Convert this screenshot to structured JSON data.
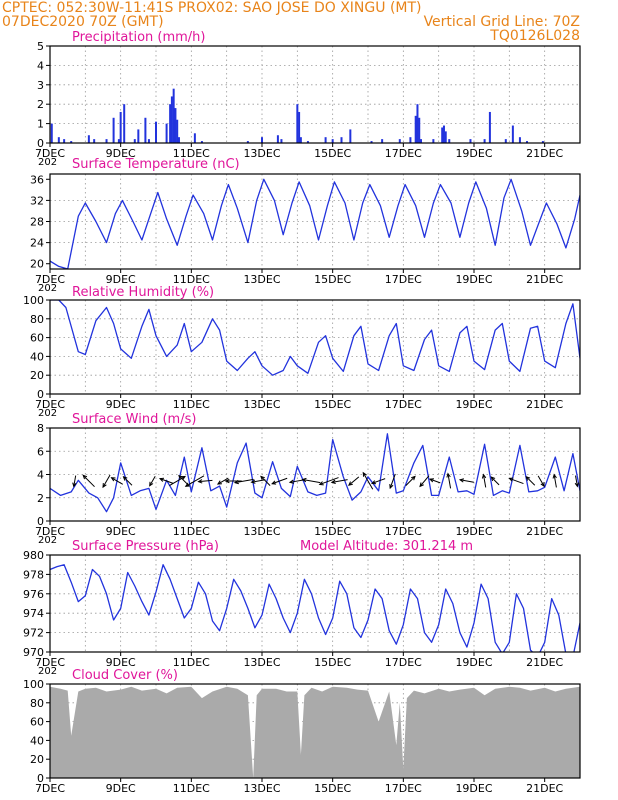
{
  "header": {
    "line1": "CPTEC:   052:30W-11:41S   PROX02: SAO JOSE DO XINGU (MT)",
    "line2_left": "07DEC2020 70Z (GMT)",
    "line2_right": "Vertical Grid Line: 70Z",
    "line3_right": "TQ0126L028"
  },
  "colors": {
    "header": "#e8841a",
    "title": "#e0169a",
    "series": "#2233dd",
    "arrow": "#000000",
    "cloud": "#aaaaaa",
    "grid": "#999999"
  },
  "x_axis": {
    "tick_labels": [
      "7DEC",
      "9DEC",
      "11DEC",
      "13DEC",
      "15DEC",
      "17DEC",
      "19DEC",
      "21DEC"
    ],
    "cut_label": "202",
    "range_days": [
      7,
      22
    ]
  },
  "panels": [
    {
      "id": "precip",
      "title": "Precipitation (mm/h)",
      "extra": "",
      "type": "bar",
      "ylim": [
        0,
        5
      ],
      "yticks": [
        "0",
        "1",
        "2",
        "3",
        "4",
        "5"
      ]
    },
    {
      "id": "temp",
      "title": "Surface Temperature (nC)",
      "extra": "",
      "type": "line",
      "ylim": [
        19,
        37
      ],
      "yticks": [
        "20",
        "24",
        "28",
        "32",
        "36"
      ]
    },
    {
      "id": "rh",
      "title": "Relative Humidity (%)",
      "extra": "",
      "type": "line",
      "ylim": [
        0,
        100
      ],
      "yticks": [
        "0",
        "20",
        "40",
        "60",
        "80",
        "100"
      ]
    },
    {
      "id": "wind",
      "title": "Surface Wind (m/s)",
      "extra": "",
      "type": "line",
      "ylim": [
        0,
        8
      ],
      "yticks": [
        "0",
        "2",
        "4",
        "6",
        "8"
      ]
    },
    {
      "id": "pres",
      "title": "Surface Pressure (hPa)",
      "extra": "Model Altitude: 301.214 m",
      "type": "line",
      "ylim": [
        970,
        980
      ],
      "yticks": [
        "970",
        "972",
        "974",
        "976",
        "978",
        "980"
      ]
    },
    {
      "id": "cloud",
      "title": "Cloud Cover (%)",
      "extra": "",
      "type": "area",
      "ylim": [
        0,
        100
      ],
      "yticks": [
        "0",
        "20",
        "40",
        "60",
        "80",
        "100"
      ]
    }
  ],
  "chart_data": [
    {
      "type": "bar",
      "title": "Precipitation (mm/h)",
      "ylim": [
        0,
        5
      ],
      "x": [
        7.05,
        7.25,
        7.4,
        7.6,
        8.1,
        8.25,
        8.6,
        8.8,
        8.95,
        9.0,
        9.1,
        9.4,
        9.5,
        9.7,
        9.8,
        10.0,
        10.3,
        10.4,
        10.45,
        10.5,
        10.55,
        10.6,
        10.65,
        11.1,
        11.3,
        12.6,
        13.0,
        13.45,
        13.55,
        14.0,
        14.05,
        14.1,
        14.3,
        14.8,
        15.0,
        15.25,
        15.5,
        16.1,
        16.4,
        16.9,
        17.2,
        17.35,
        17.4,
        17.45,
        17.5,
        17.85,
        18.1,
        18.15,
        18.2,
        18.3,
        18.9,
        19.3,
        19.45,
        19.9,
        20.1,
        20.3,
        20.5,
        20.95
      ],
      "values": [
        1.0,
        0.3,
        0.2,
        0.1,
        0.4,
        0.2,
        0.2,
        1.3,
        0.2,
        1.6,
        2.0,
        0.2,
        0.7,
        1.3,
        0.2,
        1.1,
        1.0,
        2.0,
        2.4,
        2.8,
        1.8,
        1.2,
        0.3,
        0.5,
        0.1,
        0.1,
        0.3,
        0.4,
        0.2,
        2.0,
        1.6,
        0.3,
        0.1,
        0.3,
        0.2,
        0.3,
        0.7,
        0.1,
        0.2,
        0.2,
        0.3,
        1.4,
        2.0,
        1.3,
        0.2,
        0.2,
        0.8,
        0.9,
        0.6,
        0.2,
        0.2,
        0.2,
        1.6,
        0.2,
        0.9,
        0.3,
        0.1,
        0.1
      ]
    },
    {
      "type": "line",
      "title": "Surface Temperature (nC)",
      "ylim": [
        19,
        37
      ],
      "x": [
        7.0,
        7.25,
        7.5,
        7.8,
        8.0,
        8.3,
        8.6,
        8.85,
        9.05,
        9.35,
        9.6,
        9.85,
        10.05,
        10.3,
        10.6,
        10.85,
        11.05,
        11.35,
        11.6,
        11.85,
        12.05,
        12.3,
        12.6,
        12.85,
        13.05,
        13.35,
        13.6,
        13.85,
        14.05,
        14.35,
        14.6,
        14.85,
        15.05,
        15.35,
        15.6,
        15.85,
        16.05,
        16.35,
        16.6,
        16.85,
        17.05,
        17.35,
        17.6,
        17.85,
        18.05,
        18.35,
        18.6,
        18.85,
        19.05,
        19.35,
        19.6,
        19.85,
        20.05,
        20.35,
        20.6,
        20.85,
        21.05,
        21.35,
        21.6,
        21.85,
        22.0
      ],
      "values": [
        20.5,
        19.5,
        19.0,
        29.0,
        31.5,
        28.0,
        24.0,
        29.5,
        32.0,
        28.0,
        24.5,
        29.5,
        33.5,
        28.5,
        23.5,
        29.0,
        33.0,
        29.5,
        24.5,
        31.0,
        35.0,
        30.5,
        24.0,
        32.0,
        36.0,
        32.0,
        25.5,
        31.5,
        35.5,
        31.0,
        24.5,
        31.0,
        35.5,
        31.5,
        24.5,
        31.5,
        35.0,
        31.0,
        25.0,
        31.0,
        35.0,
        31.0,
        25.0,
        31.5,
        35.0,
        31.5,
        25.0,
        31.5,
        35.5,
        30.5,
        23.5,
        32.5,
        36.0,
        30.0,
        23.5,
        28.0,
        31.5,
        27.5,
        23.0,
        28.5,
        33.0
      ]
    },
    {
      "type": "line",
      "title": "Relative Humidity (%)",
      "ylim": [
        0,
        100
      ],
      "x": [
        7.0,
        7.25,
        7.45,
        7.8,
        8.0,
        8.3,
        8.6,
        8.8,
        9.0,
        9.3,
        9.6,
        9.8,
        10.0,
        10.3,
        10.6,
        10.8,
        11.0,
        11.3,
        11.6,
        11.8,
        12.0,
        12.3,
        12.6,
        12.8,
        13.0,
        13.3,
        13.6,
        13.8,
        14.0,
        14.3,
        14.6,
        14.8,
        15.0,
        15.3,
        15.6,
        15.8,
        16.0,
        16.3,
        16.6,
        16.8,
        17.0,
        17.3,
        17.6,
        17.8,
        18.0,
        18.3,
        18.6,
        18.8,
        19.0,
        19.3,
        19.6,
        19.8,
        20.0,
        20.3,
        20.6,
        20.8,
        21.0,
        21.3,
        21.6,
        21.8,
        22.0
      ],
      "values": [
        100,
        100,
        92,
        45,
        42,
        78,
        92,
        75,
        48,
        38,
        72,
        90,
        62,
        40,
        52,
        75,
        45,
        55,
        80,
        68,
        35,
        25,
        38,
        45,
        30,
        20,
        25,
        40,
        30,
        22,
        55,
        62,
        38,
        24,
        62,
        72,
        32,
        25,
        62,
        75,
        30,
        25,
        58,
        68,
        30,
        24,
        65,
        72,
        35,
        26,
        68,
        75,
        35,
        24,
        70,
        72,
        35,
        28,
        75,
        96,
        38
      ]
    },
    {
      "type": "line",
      "title": "Surface Wind (m/s)",
      "ylim": [
        0,
        8
      ],
      "x": [
        7.0,
        7.3,
        7.6,
        7.8,
        8.1,
        8.35,
        8.6,
        8.8,
        9.0,
        9.3,
        9.55,
        9.8,
        10.0,
        10.3,
        10.55,
        10.8,
        11.0,
        11.3,
        11.55,
        11.8,
        12.0,
        12.3,
        12.55,
        12.8,
        13.0,
        13.3,
        13.55,
        13.8,
        14.0,
        14.3,
        14.55,
        14.8,
        15.0,
        15.3,
        15.55,
        15.8,
        16.0,
        16.3,
        16.55,
        16.8,
        17.0,
        17.3,
        17.55,
        17.8,
        18.0,
        18.3,
        18.55,
        18.8,
        19.0,
        19.3,
        19.55,
        19.8,
        20.0,
        20.3,
        20.55,
        20.8,
        21.0,
        21.3,
        21.55,
        21.8,
        22.0
      ],
      "values": [
        2.8,
        2.2,
        2.5,
        3.5,
        2.4,
        2.0,
        0.8,
        2.0,
        5.0,
        2.2,
        2.6,
        2.8,
        1.0,
        3.5,
        2.2,
        5.5,
        2.5,
        6.3,
        2.6,
        3.0,
        1.2,
        5.0,
        6.7,
        2.4,
        2.0,
        5.1,
        2.8,
        2.1,
        4.7,
        2.5,
        2.2,
        2.4,
        7.0,
        3.8,
        1.8,
        2.5,
        3.8,
        2.6,
        7.5,
        2.4,
        2.6,
        5.0,
        6.5,
        2.2,
        2.2,
        5.5,
        2.5,
        2.6,
        2.3,
        6.6,
        2.2,
        2.6,
        2.4,
        6.5,
        2.5,
        2.6,
        2.9,
        5.5,
        2.6,
        5.8,
        2.6
      ]
    },
    {
      "type": "line",
      "title": "Surface Pressure (hPa)",
      "ylim": [
        970,
        980
      ],
      "x": [
        7.0,
        7.2,
        7.4,
        7.6,
        7.8,
        8.0,
        8.2,
        8.4,
        8.6,
        8.8,
        9.0,
        9.2,
        9.4,
        9.6,
        9.8,
        10.0,
        10.2,
        10.4,
        10.6,
        10.8,
        11.0,
        11.2,
        11.4,
        11.6,
        11.8,
        12.0,
        12.2,
        12.4,
        12.6,
        12.8,
        13.0,
        13.2,
        13.4,
        13.6,
        13.8,
        14.0,
        14.2,
        14.4,
        14.6,
        14.8,
        15.0,
        15.2,
        15.4,
        15.6,
        15.8,
        16.0,
        16.2,
        16.4,
        16.6,
        16.8,
        17.0,
        17.2,
        17.4,
        17.6,
        17.8,
        18.0,
        18.2,
        18.4,
        18.6,
        18.8,
        19.0,
        19.2,
        19.4,
        19.6,
        19.8,
        20.0,
        20.2,
        20.4,
        20.6,
        20.8,
        21.0,
        21.2,
        21.4,
        21.6,
        21.8,
        22.0
      ],
      "values": [
        978.5,
        978.8,
        979.0,
        977.2,
        975.2,
        975.8,
        978.5,
        977.8,
        976.0,
        973.3,
        974.5,
        978.2,
        976.8,
        975.2,
        973.8,
        976.2,
        979.0,
        977.5,
        975.5,
        973.5,
        974.5,
        977.2,
        976.0,
        973.2,
        972.2,
        974.5,
        977.5,
        976.3,
        974.5,
        972.5,
        973.8,
        977.0,
        975.5,
        973.5,
        972.0,
        974.0,
        977.5,
        976.0,
        973.5,
        971.8,
        973.5,
        977.3,
        976.0,
        972.5,
        971.5,
        973.3,
        976.5,
        975.5,
        972.2,
        970.8,
        972.8,
        976.5,
        975.5,
        972.0,
        971.0,
        972.8,
        976.5,
        975.0,
        972.0,
        970.5,
        973.0,
        977.0,
        975.5,
        971.0,
        969.8,
        971.0,
        976.0,
        974.5,
        970.2,
        969.5,
        971.0,
        975.5,
        973.8,
        969.8,
        969.5,
        973.0
      ]
    },
    {
      "type": "area",
      "title": "Cloud Cover (%)",
      "ylim": [
        0,
        100
      ],
      "x": [
        7.0,
        7.3,
        7.5,
        7.6,
        7.8,
        8.0,
        8.3,
        8.6,
        9.0,
        9.3,
        9.6,
        10.0,
        10.3,
        10.6,
        11.0,
        11.3,
        11.6,
        12.0,
        12.3,
        12.6,
        12.75,
        12.85,
        13.0,
        13.4,
        13.7,
        14.0,
        14.1,
        14.2,
        14.4,
        14.7,
        15.0,
        15.4,
        15.7,
        16.0,
        16.3,
        16.6,
        16.8,
        16.9,
        17.0,
        17.1,
        17.3,
        17.6,
        18.0,
        18.3,
        18.6,
        19.0,
        19.3,
        19.6,
        20.0,
        20.3,
        20.6,
        21.0,
        21.3,
        21.6,
        22.0
      ],
      "values": [
        97,
        95,
        93,
        45,
        92,
        95,
        96,
        92,
        94,
        97,
        93,
        95,
        90,
        96,
        97,
        85,
        92,
        97,
        95,
        88,
        0,
        88,
        95,
        95,
        92,
        92,
        25,
        88,
        96,
        92,
        97,
        96,
        94,
        93,
        60,
        92,
        35,
        80,
        10,
        85,
        93,
        90,
        95,
        92,
        94,
        96,
        88,
        95,
        97,
        96,
        93,
        96,
        92,
        95,
        97
      ]
    }
  ],
  "wind_barbs": {
    "x": [
      7.7,
      8.1,
      8.6,
      8.9,
      9.2,
      9.9,
      10.3,
      10.6,
      10.8,
      11.1,
      11.4,
      11.9,
      12.2,
      12.5,
      12.9,
      13.1,
      13.5,
      14.0,
      14.4,
      14.9,
      15.2,
      15.6,
      16.0,
      16.3,
      16.7,
      17.2,
      17.6,
      17.9,
      18.3,
      18.8,
      19.3,
      19.6,
      20.2,
      20.6,
      20.9,
      21.3,
      21.9
    ],
    "angle": [
      -100,
      135,
      -120,
      150,
      135,
      -120,
      160,
      30,
      135,
      -150,
      -175,
      -150,
      180,
      -170,
      -170,
      135,
      -160,
      -170,
      170,
      -160,
      -170,
      -140,
      120,
      -160,
      -110,
      45,
      -130,
      160,
      100,
      170,
      100,
      135,
      160,
      135,
      -60,
      100,
      -80
    ],
    "len": [
      0.5,
      1.0,
      0.8,
      0.7,
      0.6,
      0.5,
      0.8,
      1.2,
      0.9,
      1.5,
      0.8,
      0.6,
      1.0,
      1.3,
      0.8,
      0.7,
      1.0,
      0.9,
      1.2,
      1.4,
      1.0,
      0.7,
      1.3,
      0.8,
      0.9,
      0.7,
      0.8,
      0.5,
      0.9,
      0.8,
      0.7,
      0.5,
      0.9,
      0.6,
      0.6,
      0.7,
      0.5
    ]
  }
}
